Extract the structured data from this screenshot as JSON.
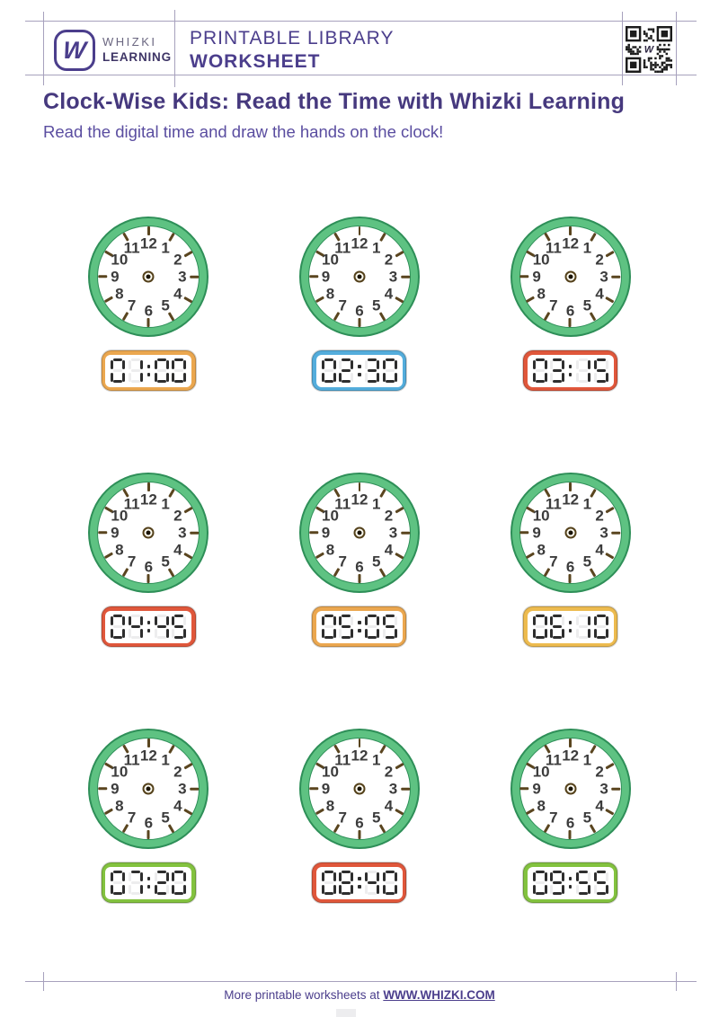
{
  "header": {
    "brand": {
      "logo_letter": "W",
      "name_line1": "WHIZKI",
      "name_line2": "LEARNING"
    },
    "library_line1": "PRINTABLE LIBRARY",
    "library_line2": "WORKSHEET",
    "qr_center": "W"
  },
  "title": "Clock-Wise Kids: Read the Time with Whizki Learning",
  "subtitle": "Read the digital time and draw the hands on the clock!",
  "clock_face": {
    "numbers": [
      "12",
      "1",
      "2",
      "3",
      "4",
      "5",
      "6",
      "7",
      "8",
      "9",
      "10",
      "11"
    ]
  },
  "cells": [
    {
      "time": "01:00",
      "frame_color": "#EBA74F"
    },
    {
      "time": "02:30",
      "frame_color": "#54ADDC"
    },
    {
      "time": "03:15",
      "frame_color": "#E0573B"
    },
    {
      "time": "04:45",
      "frame_color": "#E0573B"
    },
    {
      "time": "05:05",
      "frame_color": "#EBA74F"
    },
    {
      "time": "06:10",
      "frame_color": "#EDBB4F"
    },
    {
      "time": "07:20",
      "frame_color": "#83C23F"
    },
    {
      "time": "08:40",
      "frame_color": "#E0573B"
    },
    {
      "time": "09:55",
      "frame_color": "#83C23F"
    }
  ],
  "footer": {
    "text": "More printable worksheets at ",
    "link": "WWW.WHIZKI.COM"
  },
  "colors": {
    "accent_purple": "#4b3e8c",
    "title_purple": "#46397e",
    "subtitle_purple": "#5a4da0",
    "clock_ring_green": "#5ec282",
    "clock_ring_outline": "#2e8f58",
    "tick_brown": "#5a451f",
    "segment_lit": "#2e2e2e",
    "segment_ghost": "#ededee"
  }
}
